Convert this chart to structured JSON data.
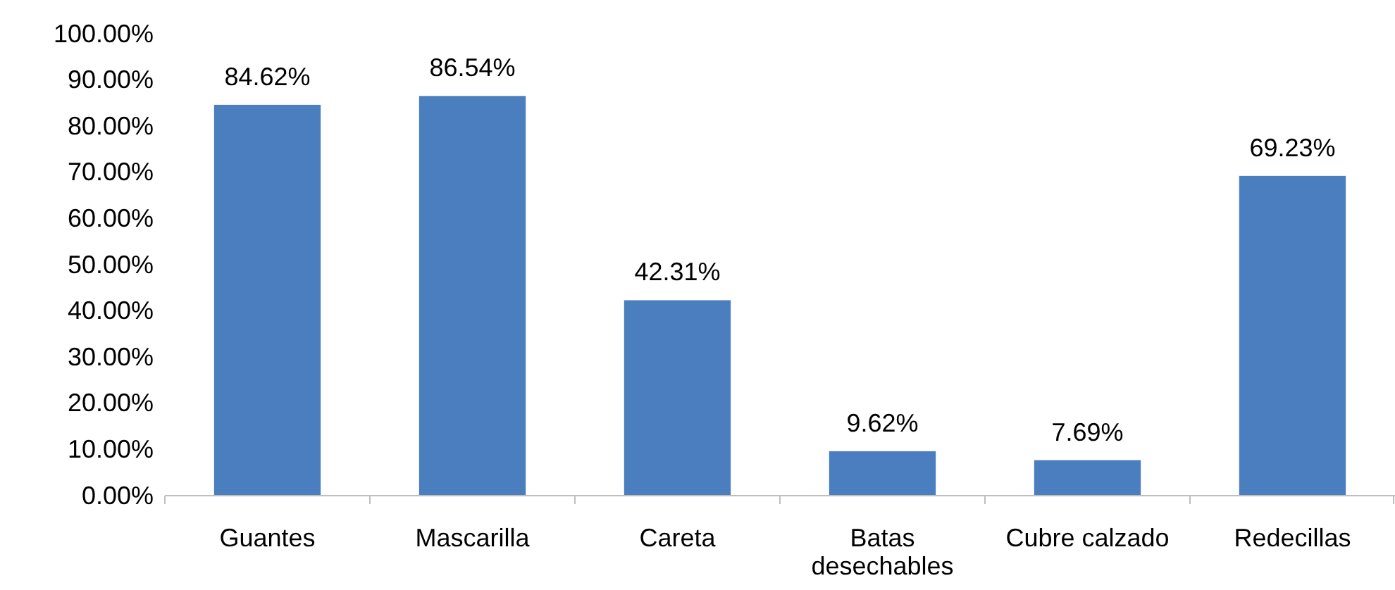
{
  "chart_data": {
    "type": "bar",
    "categories": [
      "Guantes",
      "Mascarilla",
      "Careta",
      "Batas desechables",
      "Cubre calzado",
      "Redecillas"
    ],
    "values": [
      84.62,
      86.54,
      42.31,
      9.62,
      7.69,
      69.23
    ],
    "value_labels": [
      "84.62%",
      "86.54%",
      "42.31%",
      "9.62%",
      "7.69%",
      "69.23%"
    ],
    "color": "#4a7ebf",
    "ylim": [
      0,
      100
    ],
    "yticks": [
      {
        "value": 0,
        "label": "0.00%"
      },
      {
        "value": 10,
        "label": "10.00%"
      },
      {
        "value": 20,
        "label": "20.00%"
      },
      {
        "value": 30,
        "label": "30.00%"
      },
      {
        "value": 40,
        "label": "40.00%"
      },
      {
        "value": 50,
        "label": "50.00%"
      },
      {
        "value": 60,
        "label": "60.00%"
      },
      {
        "value": 70,
        "label": "70.00%"
      },
      {
        "value": 80,
        "label": "80.00%"
      },
      {
        "value": 90,
        "label": "90.00%"
      },
      {
        "value": 100,
        "label": "100.00%"
      }
    ],
    "grid": false
  }
}
